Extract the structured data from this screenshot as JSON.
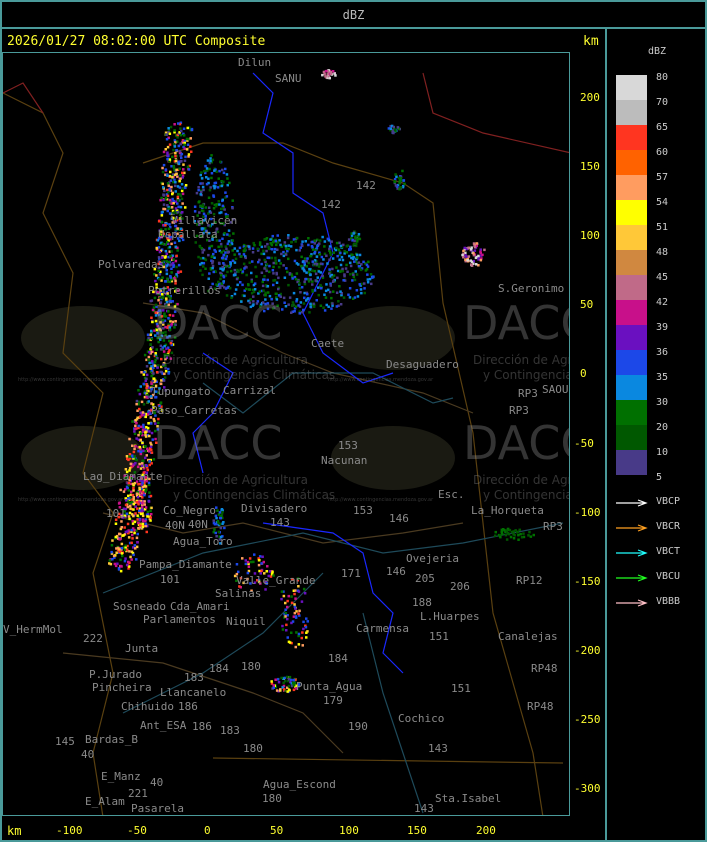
{
  "header": {
    "title": "dBZ"
  },
  "map": {
    "title": "2026/01/27 08:02:00 UTC Composite",
    "unit_top": "km",
    "unit_bottom": "km",
    "y_ticks": [
      "200",
      "150",
      "100",
      "50",
      "0",
      "-50",
      "-100",
      "-150",
      "-200",
      "-250",
      "-300"
    ],
    "x_ticks": [
      "-100",
      "-50",
      "0",
      "50",
      "100",
      "150",
      "200"
    ],
    "places": [
      "Dilun",
      "SANU",
      "Uspallata",
      "Villavicen",
      "Polvaredas",
      "Potrerillos",
      "Carrizal",
      "Caete",
      "Desaguadero",
      "S.Geronimo",
      "SAOU",
      "RP3",
      "RP3",
      "RP3",
      "Nacunan",
      "Divisadero",
      "Lag_Diamante",
      "Co_Negro",
      "La_Horqueta",
      "Esc.",
      "Agua_Toro",
      "Pampa_Diamante",
      "Valle_Grande",
      "Ovejeria",
      "RP12",
      "Salinas",
      "Cda_Amari",
      "Parlamentos",
      "Sosneado",
      "Niquil",
      "V_HermMol",
      "Junta",
      "L.Huarpes",
      "Carmensa",
      "Canalejas",
      "P.Jurado",
      "Pincheira",
      "Llancanelo",
      "Punta_Agua",
      "RP48",
      "Chihuido",
      "Ant_ESA",
      "Cochico",
      "RP48",
      "Bardas_B",
      "E_Manz",
      "Agua_Escond",
      "E_Alam",
      "Pasarela",
      "Sta.Isabel",
      "Paso_Carretas",
      "Tupungato",
      "142",
      "142",
      "153",
      "153",
      "146",
      "146",
      "143",
      "101",
      "40N",
      "40N",
      "101",
      "205",
      "206",
      "188",
      "151",
      "151",
      "184",
      "180",
      "184",
      "179",
      "190",
      "186",
      "186",
      "183",
      "183",
      "180",
      "180",
      "143",
      "143",
      "222",
      "221",
      "145",
      "40",
      "40",
      "171"
    ],
    "watermark": {
      "logo": "DACC",
      "line1": "Dirección de Agricultura",
      "line2": "y Contingencias Climáticas",
      "url": "http://www.contingencias.mendoza.gov.ar"
    }
  },
  "legend": {
    "title": "dBZ",
    "levels": [
      {
        "label": "80",
        "color": "#d8d8d8"
      },
      {
        "label": "70",
        "color": "#bcbcbc"
      },
      {
        "label": "65",
        "color": "#ff3520"
      },
      {
        "label": "60",
        "color": "#ff6200"
      },
      {
        "label": "57",
        "color": "#ff9c60"
      },
      {
        "label": "54",
        "color": "#ffff00"
      },
      {
        "label": "51",
        "color": "#ffc838"
      },
      {
        "label": "48",
        "color": "#d08840"
      },
      {
        "label": "45",
        "color": "#c06a88"
      },
      {
        "label": "42",
        "color": "#c8108a"
      },
      {
        "label": "39",
        "color": "#6a10c0"
      },
      {
        "label": "36",
        "color": "#1c48e8"
      },
      {
        "label": "35",
        "color": "#0a88e0"
      },
      {
        "label": "30",
        "color": "#007000"
      },
      {
        "label": "20",
        "color": "#005800"
      },
      {
        "label": "10",
        "color": "#483a88"
      }
    ],
    "bottom_label": "5",
    "radars": [
      {
        "name": "VBCP",
        "color": "#ffffff"
      },
      {
        "name": "VBCR",
        "color": "#ffa020"
      },
      {
        "name": "VBCT",
        "color": "#20ffff"
      },
      {
        "name": "VBCU",
        "color": "#20ff20"
      },
      {
        "name": "VBBB",
        "color": "#ffc0c8"
      }
    ]
  }
}
